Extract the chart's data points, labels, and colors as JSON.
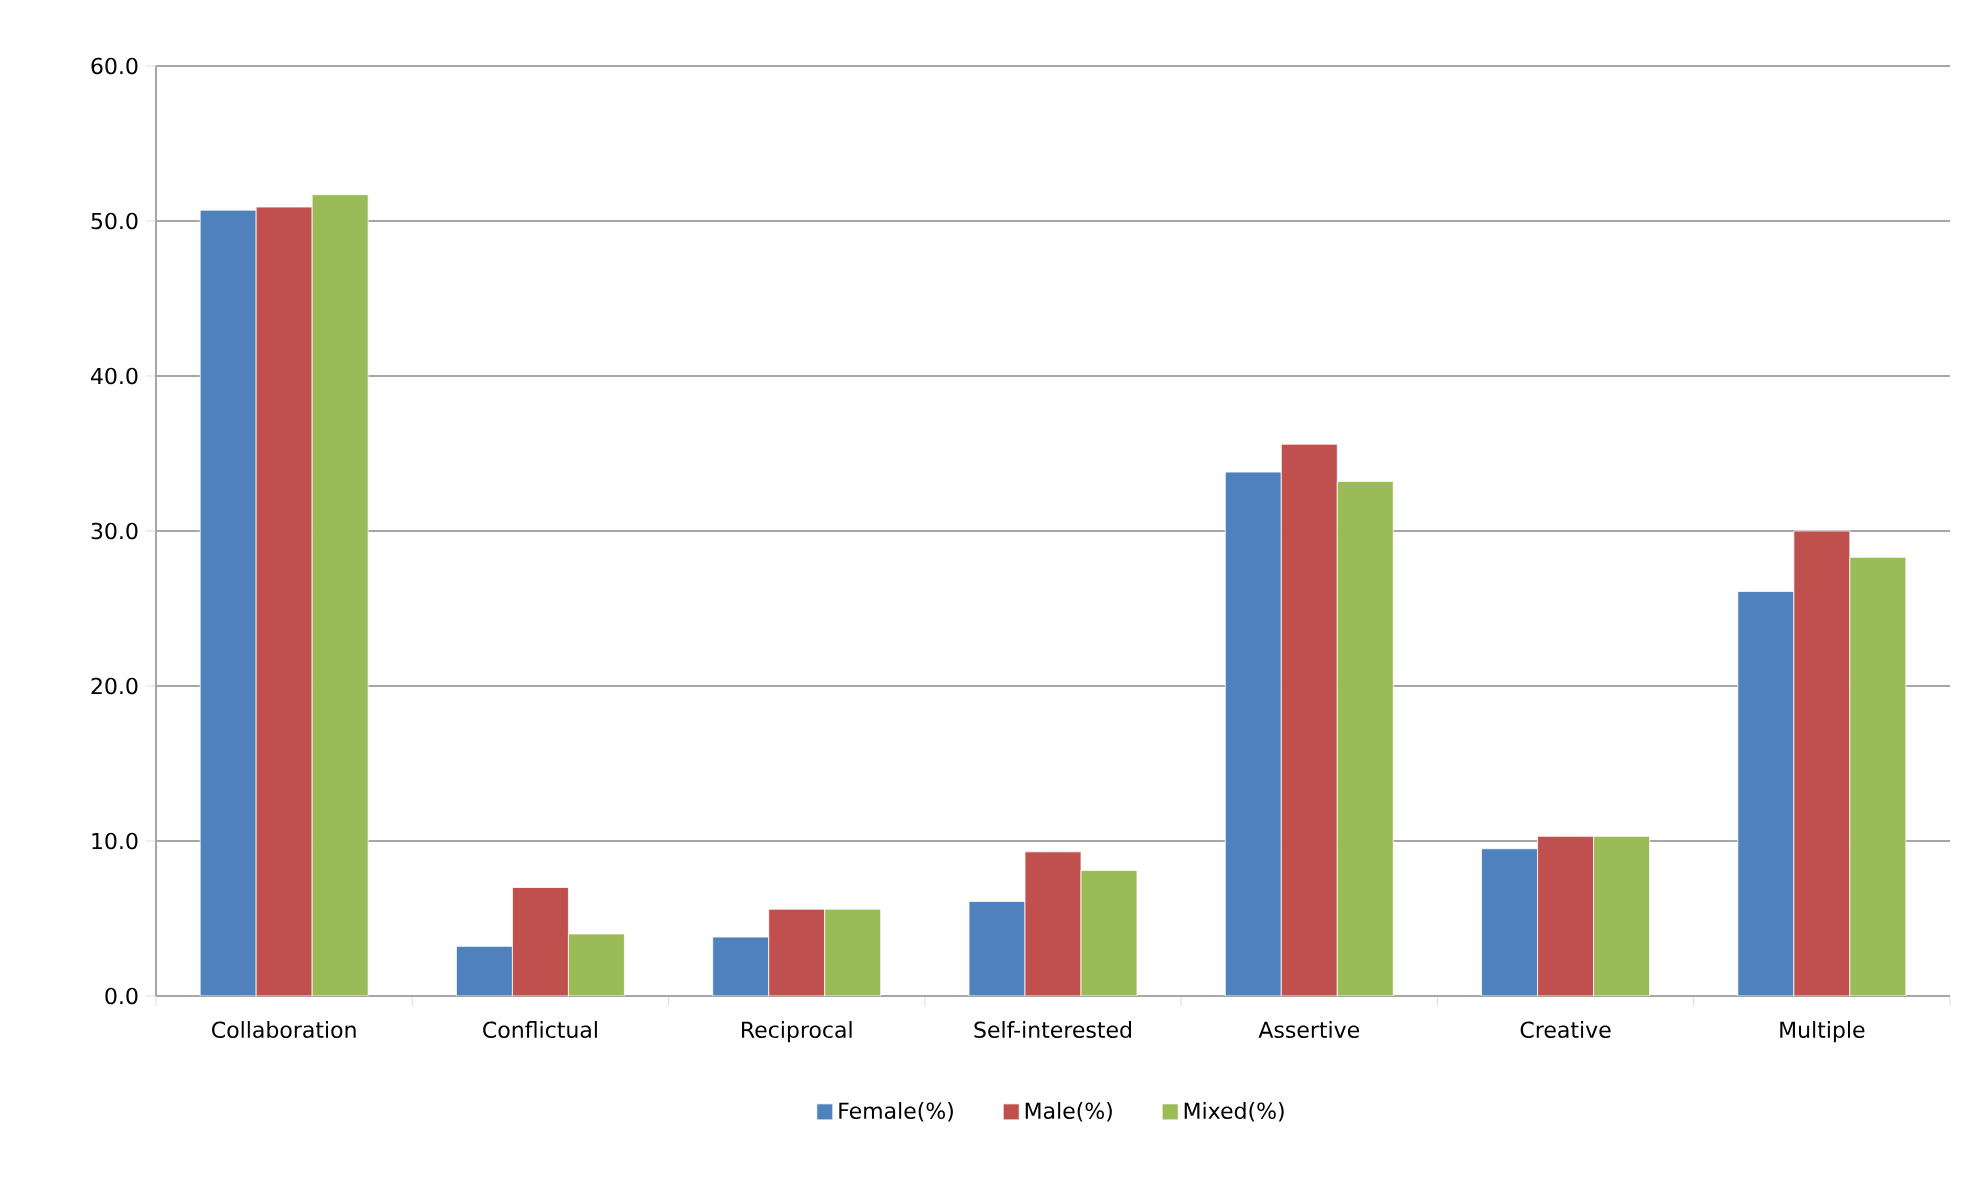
{
  "chart_data": {
    "type": "bar",
    "categories": [
      "Collaboration",
      "Conflictual",
      "Reciprocal",
      "Self-interested",
      "Assertive",
      "Creative",
      "Multiple"
    ],
    "series": [
      {
        "name": "Female(%)",
        "color": "#4f81bd",
        "values": [
          50.7,
          3.2,
          3.8,
          6.1,
          33.8,
          9.5,
          26.1
        ]
      },
      {
        "name": "Male(%)",
        "color": "#c0504d",
        "values": [
          50.9,
          7.0,
          5.6,
          9.3,
          35.6,
          10.3,
          30.0
        ]
      },
      {
        "name": "Mixed(%)",
        "color": "#9bbb59",
        "values": [
          51.7,
          4.0,
          5.6,
          8.1,
          33.2,
          10.3,
          28.3
        ]
      }
    ],
    "ylim": [
      0,
      60
    ],
    "yticks": [
      {
        "value": 0,
        "label": "0.0"
      },
      {
        "value": 10,
        "label": "10.0"
      },
      {
        "value": 20,
        "label": "20.0"
      },
      {
        "value": 30,
        "label": "30.0"
      },
      {
        "value": 40,
        "label": "40.0"
      },
      {
        "value": 50,
        "label": "50.0"
      },
      {
        "value": 60,
        "label": "60.0"
      }
    ],
    "grid": "y",
    "legend": "bottom"
  }
}
